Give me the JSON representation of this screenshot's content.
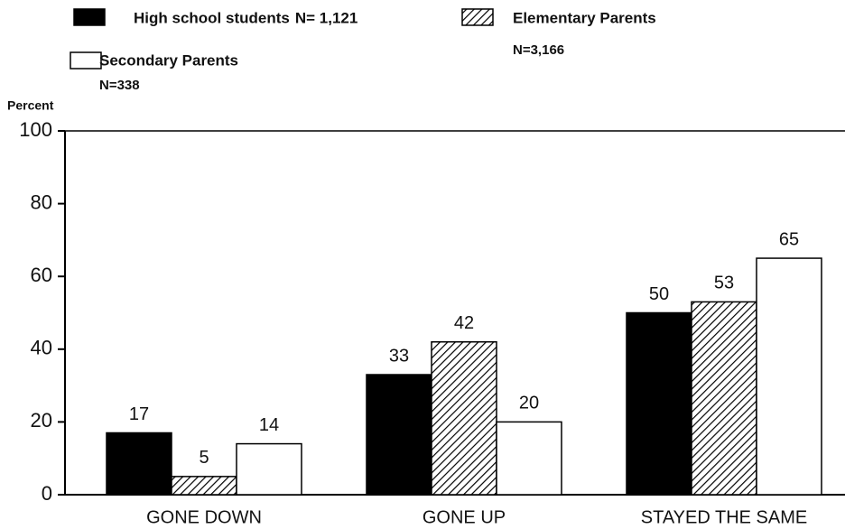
{
  "chart_data": {
    "type": "bar",
    "y_label": "Percent",
    "categories": [
      "GONE DOWN",
      "GONE UP",
      "STAYED THE SAME"
    ],
    "series": [
      {
        "name": "High school students",
        "n_label": "N= 1,121",
        "color": "#000000",
        "values": [
          17,
          33,
          50
        ]
      },
      {
        "name": "Elementary Parents",
        "n_label": "N=3,166",
        "color": "#000000",
        "fill_pattern": "diagonal-hatch",
        "values": [
          5,
          42,
          53
        ]
      },
      {
        "name": "Secondary Parents",
        "n_label": "N=338",
        "color": "#ffffff",
        "values": [
          14,
          20,
          65
        ]
      }
    ],
    "ylim": [
      0,
      100
    ],
    "yticks": [
      0,
      20,
      40,
      60,
      80,
      100
    ],
    "show_value_labels": true
  }
}
